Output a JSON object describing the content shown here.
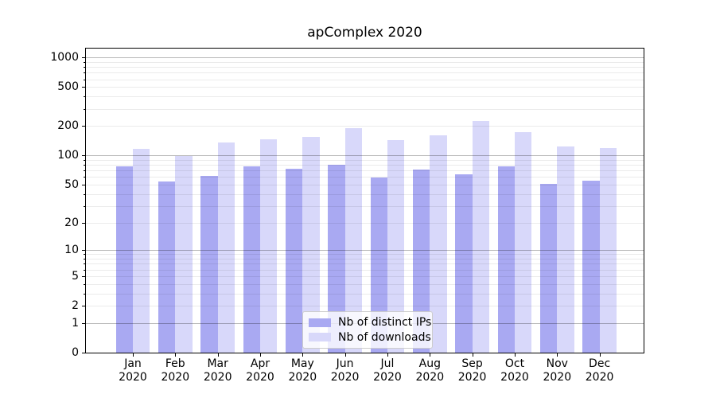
{
  "chart_data": {
    "type": "bar",
    "title": "apComplex 2020",
    "x_months": [
      "Jan",
      "Feb",
      "Mar",
      "Apr",
      "May",
      "Jun",
      "Jul",
      "Aug",
      "Sep",
      "Oct",
      "Nov",
      "Dec"
    ],
    "x_year": "2020",
    "series": [
      {
        "name": "Nb of distinct IPs",
        "color": "#a9a9f2",
        "values": [
          77,
          54,
          62,
          78,
          73,
          80,
          59,
          72,
          64,
          78,
          51,
          55
        ]
      },
      {
        "name": "Nb of downloads",
        "color": "#d8d8fa",
        "values": [
          117,
          99,
          136,
          146,
          154,
          189,
          143,
          160,
          225,
          173,
          124,
          119
        ]
      }
    ],
    "yscale": "log1p",
    "ylim": [
      0,
      1234
    ],
    "yticks": [
      1000,
      500,
      200,
      100,
      50,
      20,
      10,
      5,
      2,
      1,
      0
    ],
    "grid": "both",
    "grid_major_values": [
      1,
      10,
      100,
      1000
    ],
    "grid_minor_values": [
      2,
      3,
      4,
      5,
      6,
      7,
      8,
      9,
      20,
      30,
      40,
      50,
      60,
      70,
      80,
      90,
      200,
      300,
      400,
      500,
      600,
      700,
      800,
      900
    ],
    "legend": {
      "position": "lower center"
    }
  }
}
